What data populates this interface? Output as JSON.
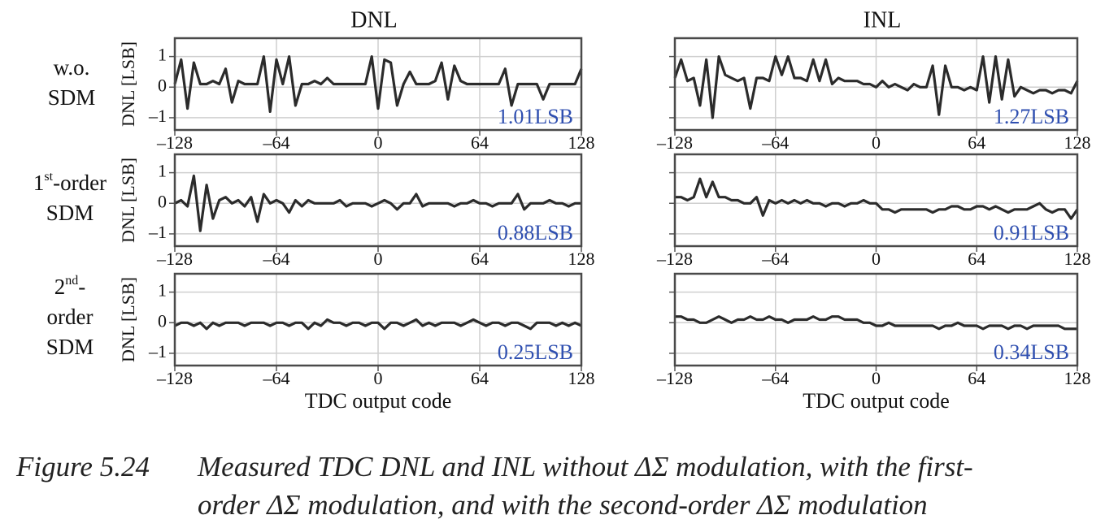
{
  "figure": {
    "column_titles": [
      "DNL",
      "INL"
    ],
    "row_labels": [
      {
        "lines": [
          [
            "w.o."
          ],
          [
            "SDM"
          ]
        ]
      },
      {
        "lines": [
          [
            "1",
            "st",
            "-order"
          ],
          [
            "SDM"
          ]
        ]
      },
      {
        "lines": [
          [
            "2",
            "nd",
            "-"
          ],
          [
            "order"
          ],
          [
            "SDM"
          ]
        ]
      }
    ]
  },
  "chart_data": [
    {
      "type": "line",
      "ylabel": "DNL [LSB]",
      "annotation": "1.01LSB",
      "color": "#2b2b2b",
      "grid": true,
      "ytick_labels": true,
      "xlim": [
        -128,
        128
      ],
      "ylim": [
        -1.4,
        1.6
      ],
      "xticks": [
        {
          "value": -128,
          "label": "–128"
        },
        {
          "value": -64,
          "label": "–64"
        },
        0,
        64,
        128
      ],
      "yticks": [
        {
          "value": -1,
          "label": "–1"
        },
        0,
        1
      ],
      "x": [
        -128,
        -124,
        -120,
        -116,
        -112,
        -108,
        -104,
        -100,
        -96,
        -92,
        -88,
        -84,
        -80,
        -76,
        -72,
        -68,
        -64,
        -60,
        -56,
        -52,
        -48,
        -44,
        -40,
        -36,
        -32,
        -28,
        -24,
        -20,
        -16,
        -12,
        -8,
        -4,
        0,
        4,
        8,
        12,
        16,
        20,
        24,
        28,
        32,
        36,
        40,
        44,
        48,
        52,
        56,
        60,
        64,
        68,
        72,
        76,
        80,
        84,
        88,
        92,
        96,
        100,
        104,
        108,
        112,
        116,
        120,
        124,
        128
      ],
      "values": [
        0.1,
        0.9,
        -0.7,
        0.8,
        0.1,
        0.1,
        0.2,
        0.1,
        0.6,
        -0.5,
        0.2,
        0.1,
        0.1,
        0.1,
        1.0,
        -0.8,
        0.9,
        0.1,
        1.0,
        -0.6,
        0.1,
        0.1,
        0.2,
        0.1,
        0.3,
        0.1,
        0.1,
        0.1,
        0.1,
        0.1,
        0.1,
        1.0,
        -0.7,
        0.9,
        0.8,
        -0.6,
        0.1,
        0.5,
        0.1,
        0.1,
        0.1,
        0.2,
        0.8,
        -0.4,
        0.7,
        0.2,
        0.1,
        0.1,
        0.1,
        0.1,
        0.1,
        0.1,
        0.6,
        -0.6,
        0.1,
        0.1,
        0.1,
        0.1,
        -0.4,
        0.1,
        0.1,
        0.1,
        0.1,
        0.1,
        0.6
      ]
    },
    {
      "type": "line",
      "annotation": "1.27LSB",
      "color": "#2b2b2b",
      "grid": true,
      "ytick_labels": false,
      "xlim": [
        -128,
        128
      ],
      "ylim": [
        -1.4,
        1.6
      ],
      "xticks": [
        {
          "value": -128,
          "label": "–128"
        },
        {
          "value": -64,
          "label": "–64"
        },
        0,
        64,
        128
      ],
      "yticks": [
        -1,
        0,
        1
      ],
      "x": [
        -128,
        -124,
        -120,
        -116,
        -112,
        -108,
        -104,
        -100,
        -96,
        -92,
        -88,
        -84,
        -80,
        -76,
        -72,
        -68,
        -64,
        -60,
        -56,
        -52,
        -48,
        -44,
        -40,
        -36,
        -32,
        -28,
        -24,
        -20,
        -16,
        -12,
        -8,
        -4,
        0,
        4,
        8,
        12,
        16,
        20,
        24,
        28,
        32,
        36,
        40,
        44,
        48,
        52,
        56,
        60,
        64,
        68,
        72,
        76,
        80,
        84,
        88,
        92,
        96,
        100,
        104,
        108,
        112,
        116,
        120,
        124,
        128
      ],
      "values": [
        0.3,
        0.9,
        0.2,
        0.3,
        -0.6,
        0.9,
        -1.0,
        1.0,
        0.4,
        0.3,
        0.2,
        0.3,
        -0.7,
        0.3,
        0.3,
        0.2,
        1.0,
        0.4,
        1.0,
        0.3,
        0.3,
        0.2,
        0.9,
        0.2,
        0.9,
        0.1,
        0.3,
        0.2,
        0.2,
        0.2,
        0.1,
        0.1,
        0.0,
        0.2,
        0.0,
        0.1,
        0.0,
        -0.1,
        0.1,
        0.0,
        0.0,
        0.7,
        -0.9,
        0.7,
        0.0,
        0.0,
        -0.1,
        0.0,
        -0.1,
        1.0,
        -0.5,
        1.0,
        -0.4,
        0.9,
        -0.3,
        0.0,
        -0.1,
        -0.2,
        -0.1,
        -0.1,
        -0.2,
        -0.1,
        -0.1,
        -0.2,
        0.2
      ]
    },
    {
      "type": "line",
      "ylabel": "DNL [LSB]",
      "annotation": "0.88LSB",
      "color": "#2b2b2b",
      "grid": true,
      "ytick_labels": true,
      "xlim": [
        -128,
        128
      ],
      "ylim": [
        -1.4,
        1.6
      ],
      "xticks": [
        {
          "value": -128,
          "label": "–128"
        },
        {
          "value": -64,
          "label": "–64"
        },
        0,
        64,
        128
      ],
      "yticks": [
        {
          "value": -1,
          "label": "–1"
        },
        0,
        1
      ],
      "x": [
        -128,
        -124,
        -120,
        -116,
        -112,
        -108,
        -104,
        -100,
        -96,
        -92,
        -88,
        -84,
        -80,
        -76,
        -72,
        -68,
        -64,
        -60,
        -56,
        -52,
        -48,
        -44,
        -40,
        -36,
        -32,
        -28,
        -24,
        -20,
        -16,
        -12,
        -8,
        -4,
        0,
        4,
        8,
        12,
        16,
        20,
        24,
        28,
        32,
        36,
        40,
        44,
        48,
        52,
        56,
        60,
        64,
        68,
        72,
        76,
        80,
        84,
        88,
        92,
        96,
        100,
        104,
        108,
        112,
        116,
        120,
        124,
        128
      ],
      "values": [
        0.0,
        0.1,
        -0.1,
        0.9,
        -0.9,
        0.6,
        -0.5,
        0.1,
        0.2,
        0.0,
        0.1,
        -0.1,
        0.2,
        -0.6,
        0.3,
        0.0,
        0.1,
        0.0,
        -0.3,
        0.1,
        -0.1,
        0.1,
        0.0,
        0.0,
        0.0,
        0.0,
        0.1,
        -0.1,
        0.0,
        0.0,
        0.0,
        -0.1,
        0.0,
        0.1,
        0.0,
        -0.2,
        0.0,
        0.0,
        0.3,
        -0.1,
        0.0,
        0.0,
        0.0,
        0.0,
        -0.1,
        0.0,
        0.0,
        0.1,
        0.0,
        0.0,
        -0.1,
        0.0,
        0.0,
        0.0,
        0.3,
        -0.2,
        0.0,
        0.0,
        0.0,
        0.1,
        0.0,
        0.0,
        -0.1,
        0.0,
        0.0
      ]
    },
    {
      "type": "line",
      "annotation": "0.91LSB",
      "color": "#2b2b2b",
      "grid": true,
      "ytick_labels": false,
      "xlim": [
        -128,
        128
      ],
      "ylim": [
        -1.4,
        1.6
      ],
      "xticks": [
        {
          "value": -128,
          "label": "–128"
        },
        {
          "value": -64,
          "label": "–64"
        },
        0,
        64,
        128
      ],
      "yticks": [
        -1,
        0,
        1
      ],
      "x": [
        -128,
        -124,
        -120,
        -116,
        -112,
        -108,
        -104,
        -100,
        -96,
        -92,
        -88,
        -84,
        -80,
        -76,
        -72,
        -68,
        -64,
        -60,
        -56,
        -52,
        -48,
        -44,
        -40,
        -36,
        -32,
        -28,
        -24,
        -20,
        -16,
        -12,
        -8,
        -4,
        0,
        4,
        8,
        12,
        16,
        20,
        24,
        28,
        32,
        36,
        40,
        44,
        48,
        52,
        56,
        60,
        64,
        68,
        72,
        76,
        80,
        84,
        88,
        92,
        96,
        100,
        104,
        108,
        112,
        116,
        120,
        124,
        128
      ],
      "values": [
        0.2,
        0.2,
        0.1,
        0.2,
        0.8,
        0.2,
        0.7,
        0.2,
        0.2,
        0.1,
        0.1,
        0.0,
        0.0,
        0.2,
        -0.4,
        0.1,
        0.0,
        0.1,
        0.0,
        0.1,
        0.0,
        0.1,
        0.0,
        0.0,
        -0.1,
        0.0,
        0.0,
        -0.1,
        0.0,
        0.0,
        0.1,
        0.0,
        0.0,
        -0.2,
        -0.2,
        -0.3,
        -0.2,
        -0.2,
        -0.2,
        -0.2,
        -0.2,
        -0.3,
        -0.2,
        -0.2,
        -0.1,
        -0.1,
        -0.2,
        -0.2,
        -0.1,
        -0.1,
        -0.2,
        -0.1,
        -0.2,
        -0.3,
        -0.2,
        -0.2,
        -0.2,
        -0.1,
        0.0,
        -0.2,
        -0.3,
        -0.2,
        -0.2,
        -0.5,
        -0.2
      ]
    },
    {
      "type": "line",
      "ylabel": "DNL [LSB]",
      "xlabel": "TDC output code",
      "annotation": "0.25LSB",
      "color": "#2b2b2b",
      "grid": true,
      "ytick_labels": true,
      "xlim": [
        -128,
        128
      ],
      "ylim": [
        -1.4,
        1.6
      ],
      "xticks": [
        {
          "value": -128,
          "label": "–128"
        },
        {
          "value": -64,
          "label": "–64"
        },
        0,
        64,
        128
      ],
      "yticks": [
        {
          "value": -1,
          "label": "–1"
        },
        0,
        1
      ],
      "x": [
        -128,
        -124,
        -120,
        -116,
        -112,
        -108,
        -104,
        -100,
        -96,
        -92,
        -88,
        -84,
        -80,
        -76,
        -72,
        -68,
        -64,
        -60,
        -56,
        -52,
        -48,
        -44,
        -40,
        -36,
        -32,
        -28,
        -24,
        -20,
        -16,
        -12,
        -8,
        -4,
        0,
        4,
        8,
        12,
        16,
        20,
        24,
        28,
        32,
        36,
        40,
        44,
        48,
        52,
        56,
        60,
        64,
        68,
        72,
        76,
        80,
        84,
        88,
        92,
        96,
        100,
        104,
        108,
        112,
        116,
        120,
        124,
        128
      ],
      "values": [
        -0.1,
        0.0,
        0.0,
        -0.1,
        0.0,
        -0.2,
        0.0,
        -0.1,
        0.0,
        0.0,
        0.0,
        -0.1,
        0.0,
        0.0,
        0.0,
        -0.1,
        0.0,
        0.0,
        -0.1,
        0.0,
        0.0,
        -0.2,
        0.0,
        -0.1,
        0.1,
        0.0,
        0.0,
        -0.1,
        0.0,
        0.0,
        -0.1,
        0.0,
        0.0,
        -0.2,
        0.0,
        0.0,
        -0.1,
        0.0,
        0.1,
        -0.1,
        0.0,
        -0.1,
        0.0,
        0.0,
        0.0,
        -0.1,
        0.0,
        0.1,
        0.0,
        -0.1,
        0.0,
        0.0,
        -0.1,
        0.0,
        0.0,
        -0.1,
        -0.2,
        0.0,
        0.0,
        0.0,
        -0.1,
        0.0,
        -0.1,
        0.0,
        -0.1
      ]
    },
    {
      "type": "line",
      "xlabel": "TDC output code",
      "annotation": "0.34LSB",
      "color": "#2b2b2b",
      "grid": true,
      "ytick_labels": false,
      "xlim": [
        -128,
        128
      ],
      "ylim": [
        -1.4,
        1.6
      ],
      "xticks": [
        {
          "value": -128,
          "label": "–128"
        },
        {
          "value": -64,
          "label": "–64"
        },
        0,
        64,
        128
      ],
      "yticks": [
        -1,
        0,
        1
      ],
      "x": [
        -128,
        -124,
        -120,
        -116,
        -112,
        -108,
        -104,
        -100,
        -96,
        -92,
        -88,
        -84,
        -80,
        -76,
        -72,
        -68,
        -64,
        -60,
        -56,
        -52,
        -48,
        -44,
        -40,
        -36,
        -32,
        -28,
        -24,
        -20,
        -16,
        -12,
        -8,
        -4,
        0,
        4,
        8,
        12,
        16,
        20,
        24,
        28,
        32,
        36,
        40,
        44,
        48,
        52,
        56,
        60,
        64,
        68,
        72,
        76,
        80,
        84,
        88,
        92,
        96,
        100,
        104,
        108,
        112,
        116,
        120,
        124,
        128
      ],
      "values": [
        0.2,
        0.2,
        0.1,
        0.1,
        0.0,
        0.0,
        0.1,
        0.2,
        0.1,
        0.0,
        0.1,
        0.1,
        0.2,
        0.1,
        0.1,
        0.2,
        0.1,
        0.1,
        0.0,
        0.1,
        0.1,
        0.1,
        0.2,
        0.1,
        0.1,
        0.2,
        0.2,
        0.1,
        0.1,
        0.1,
        0.0,
        0.0,
        -0.1,
        -0.1,
        0.0,
        -0.1,
        -0.1,
        -0.1,
        -0.1,
        -0.1,
        -0.1,
        -0.1,
        -0.2,
        -0.1,
        -0.1,
        0.0,
        -0.1,
        -0.1,
        -0.1,
        -0.2,
        -0.1,
        -0.1,
        -0.1,
        -0.2,
        -0.1,
        -0.1,
        -0.2,
        -0.1,
        -0.1,
        -0.1,
        -0.1,
        -0.1,
        -0.2,
        -0.2,
        -0.2
      ]
    }
  ],
  "caption": {
    "label": "Figure 5.24",
    "lines": [
      "Measured TDC DNL and INL without ΔΣ modulation, with the first-",
      "order ΔΣ modulation, and with the second-order ΔΣ modulation"
    ]
  }
}
